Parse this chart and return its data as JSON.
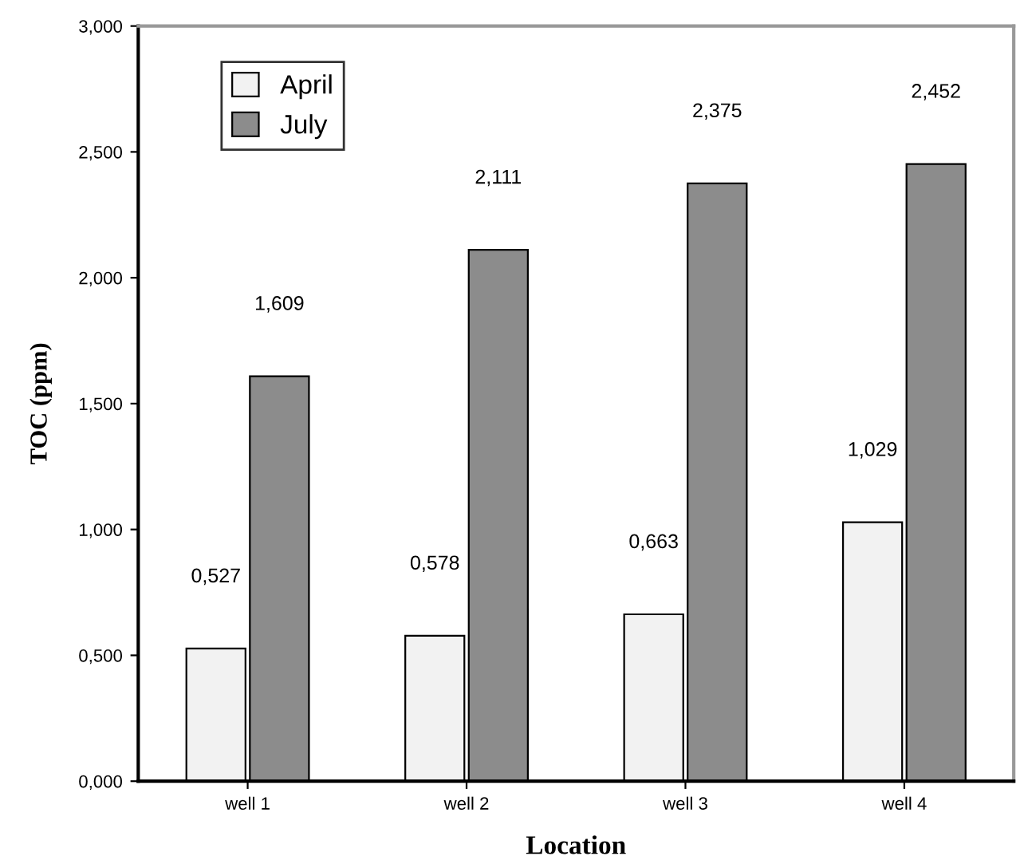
{
  "chart_data": {
    "type": "bar",
    "xlabel": "Location",
    "ylabel": "TOC (ppm)",
    "categories": [
      "well 1",
      "well 2",
      "well 3",
      "well 4"
    ],
    "series": [
      {
        "name": "April",
        "color": "#f2f2f2",
        "values": [
          0.527,
          0.578,
          0.663,
          1.029
        ],
        "value_labels": [
          "0,527",
          "0,578",
          "0,663",
          "1,029"
        ]
      },
      {
        "name": "July",
        "color": "#8c8c8c",
        "values": [
          1.609,
          2.111,
          2.375,
          2.452
        ],
        "value_labels": [
          "1,609",
          "2,111",
          "2,375",
          "2,452"
        ]
      }
    ],
    "ylim": [
      0,
      3
    ],
    "yticks": [
      {
        "value": 0,
        "label": "0,000"
      },
      {
        "value": 0.5,
        "label": "0,500"
      },
      {
        "value": 1,
        "label": "1,000"
      },
      {
        "value": 1.5,
        "label": "1,500"
      },
      {
        "value": 2,
        "label": "2,000"
      },
      {
        "value": 2.5,
        "label": "2,500"
      },
      {
        "value": 3,
        "label": "3,000"
      }
    ],
    "grid": false,
    "legend": "top left"
  }
}
